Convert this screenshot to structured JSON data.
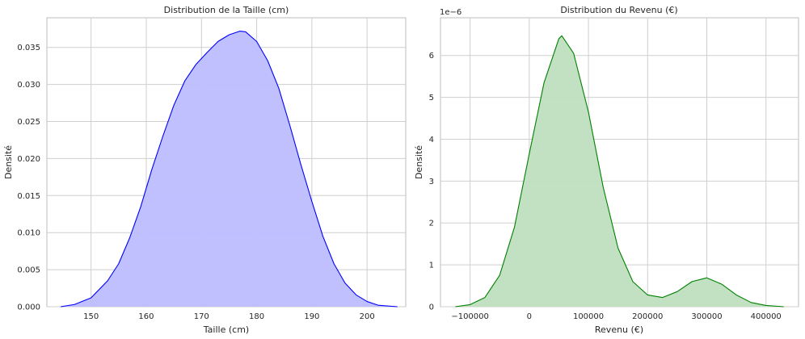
{
  "chart_data": [
    {
      "type": "area",
      "title": "Distribution de la Taille (cm)",
      "xlabel": "Taille (cm)",
      "ylabel": "Densité",
      "xlim": [
        142,
        207
      ],
      "ylim": [
        0,
        0.039
      ],
      "xticks": [
        150,
        160,
        170,
        180,
        190,
        200
      ],
      "xtick_labels": [
        "150",
        "160",
        "170",
        "180",
        "190",
        "200"
      ],
      "yticks": [
        0,
        0.005,
        0.01,
        0.015,
        0.02,
        0.025,
        0.03,
        0.035
      ],
      "ytick_labels": [
        "0.000",
        "0.005",
        "0.010",
        "0.015",
        "0.020",
        "0.025",
        "0.030",
        "0.035"
      ],
      "grid": true,
      "line_color": "#0000ff",
      "fill_color": "#bdbdff",
      "series": [
        {
          "x": [
            144.5,
            147,
            150,
            153,
            155,
            157,
            159,
            161,
            163,
            165,
            167,
            169,
            171,
            173,
            175,
            177,
            178,
            180,
            182,
            184,
            186,
            188,
            190,
            192,
            194,
            196,
            198,
            200,
            202,
            205.5
          ],
          "y": [
            0.0,
            0.0003,
            0.0012,
            0.0035,
            0.0058,
            0.0093,
            0.0135,
            0.0185,
            0.023,
            0.0272,
            0.0305,
            0.0327,
            0.0343,
            0.0358,
            0.0367,
            0.0372,
            0.0371,
            0.0358,
            0.0332,
            0.0295,
            0.0245,
            0.0192,
            0.0142,
            0.0095,
            0.0058,
            0.0032,
            0.0016,
            0.0007,
            0.0002,
            0.0
          ]
        }
      ]
    },
    {
      "type": "area",
      "title": "Distribution du Revenu (€)",
      "xlabel": "Revenu (€)",
      "ylabel": "Densité",
      "offset_label": "1e−6",
      "xlim": [
        -150000,
        455000
      ],
      "ylim": [
        0,
        6.9
      ],
      "xticks": [
        -100000,
        0,
        100000,
        200000,
        300000,
        400000
      ],
      "xtick_labels": [
        "−100000",
        "0",
        "100000",
        "200000",
        "300000",
        "400000"
      ],
      "yticks": [
        0,
        1,
        2,
        3,
        4,
        5,
        6
      ],
      "ytick_labels": [
        "0",
        "1",
        "2",
        "3",
        "4",
        "5",
        "6"
      ],
      "grid": true,
      "line_color": "#008000",
      "fill_color": "#bfdfbf",
      "series": [
        {
          "x": [
            -125000,
            -100000,
            -75000,
            -50000,
            -25000,
            0,
            25000,
            50000,
            55000,
            75000,
            100000,
            125000,
            150000,
            175000,
            200000,
            225000,
            250000,
            275000,
            300000,
            325000,
            350000,
            375000,
            400000,
            430000
          ],
          "y": [
            0.0,
            0.05,
            0.22,
            0.75,
            1.9,
            3.65,
            5.35,
            6.4,
            6.47,
            6.05,
            4.65,
            2.85,
            1.4,
            0.6,
            0.28,
            0.22,
            0.36,
            0.6,
            0.69,
            0.54,
            0.28,
            0.1,
            0.03,
            0.0
          ]
        }
      ]
    }
  ]
}
